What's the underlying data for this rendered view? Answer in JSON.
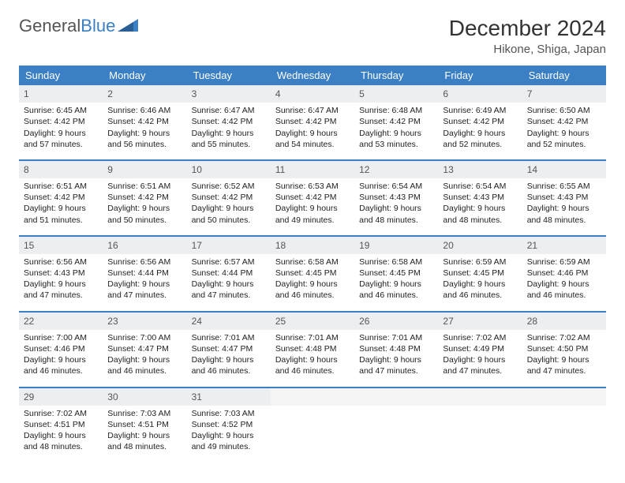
{
  "logo": {
    "text1": "General",
    "text2": "Blue"
  },
  "title": "December 2024",
  "location": "Hikone, Shiga, Japan",
  "colors": {
    "header_bg": "#3b7fc4",
    "header_text": "#ffffff",
    "daynum_bg": "#eceff2",
    "row_border": "#3b7fc4"
  },
  "weekdays": [
    "Sunday",
    "Monday",
    "Tuesday",
    "Wednesday",
    "Thursday",
    "Friday",
    "Saturday"
  ],
  "weeks": [
    [
      {
        "n": "1",
        "sr": "6:45 AM",
        "ss": "4:42 PM",
        "dl": "9 hours and 57 minutes."
      },
      {
        "n": "2",
        "sr": "6:46 AM",
        "ss": "4:42 PM",
        "dl": "9 hours and 56 minutes."
      },
      {
        "n": "3",
        "sr": "6:47 AM",
        "ss": "4:42 PM",
        "dl": "9 hours and 55 minutes."
      },
      {
        "n": "4",
        "sr": "6:47 AM",
        "ss": "4:42 PM",
        "dl": "9 hours and 54 minutes."
      },
      {
        "n": "5",
        "sr": "6:48 AM",
        "ss": "4:42 PM",
        "dl": "9 hours and 53 minutes."
      },
      {
        "n": "6",
        "sr": "6:49 AM",
        "ss": "4:42 PM",
        "dl": "9 hours and 52 minutes."
      },
      {
        "n": "7",
        "sr": "6:50 AM",
        "ss": "4:42 PM",
        "dl": "9 hours and 52 minutes."
      }
    ],
    [
      {
        "n": "8",
        "sr": "6:51 AM",
        "ss": "4:42 PM",
        "dl": "9 hours and 51 minutes."
      },
      {
        "n": "9",
        "sr": "6:51 AM",
        "ss": "4:42 PM",
        "dl": "9 hours and 50 minutes."
      },
      {
        "n": "10",
        "sr": "6:52 AM",
        "ss": "4:42 PM",
        "dl": "9 hours and 50 minutes."
      },
      {
        "n": "11",
        "sr": "6:53 AM",
        "ss": "4:42 PM",
        "dl": "9 hours and 49 minutes."
      },
      {
        "n": "12",
        "sr": "6:54 AM",
        "ss": "4:43 PM",
        "dl": "9 hours and 48 minutes."
      },
      {
        "n": "13",
        "sr": "6:54 AM",
        "ss": "4:43 PM",
        "dl": "9 hours and 48 minutes."
      },
      {
        "n": "14",
        "sr": "6:55 AM",
        "ss": "4:43 PM",
        "dl": "9 hours and 48 minutes."
      }
    ],
    [
      {
        "n": "15",
        "sr": "6:56 AM",
        "ss": "4:43 PM",
        "dl": "9 hours and 47 minutes."
      },
      {
        "n": "16",
        "sr": "6:56 AM",
        "ss": "4:44 PM",
        "dl": "9 hours and 47 minutes."
      },
      {
        "n": "17",
        "sr": "6:57 AM",
        "ss": "4:44 PM",
        "dl": "9 hours and 47 minutes."
      },
      {
        "n": "18",
        "sr": "6:58 AM",
        "ss": "4:45 PM",
        "dl": "9 hours and 46 minutes."
      },
      {
        "n": "19",
        "sr": "6:58 AM",
        "ss": "4:45 PM",
        "dl": "9 hours and 46 minutes."
      },
      {
        "n": "20",
        "sr": "6:59 AM",
        "ss": "4:45 PM",
        "dl": "9 hours and 46 minutes."
      },
      {
        "n": "21",
        "sr": "6:59 AM",
        "ss": "4:46 PM",
        "dl": "9 hours and 46 minutes."
      }
    ],
    [
      {
        "n": "22",
        "sr": "7:00 AM",
        "ss": "4:46 PM",
        "dl": "9 hours and 46 minutes."
      },
      {
        "n": "23",
        "sr": "7:00 AM",
        "ss": "4:47 PM",
        "dl": "9 hours and 46 minutes."
      },
      {
        "n": "24",
        "sr": "7:01 AM",
        "ss": "4:47 PM",
        "dl": "9 hours and 46 minutes."
      },
      {
        "n": "25",
        "sr": "7:01 AM",
        "ss": "4:48 PM",
        "dl": "9 hours and 46 minutes."
      },
      {
        "n": "26",
        "sr": "7:01 AM",
        "ss": "4:48 PM",
        "dl": "9 hours and 47 minutes."
      },
      {
        "n": "27",
        "sr": "7:02 AM",
        "ss": "4:49 PM",
        "dl": "9 hours and 47 minutes."
      },
      {
        "n": "28",
        "sr": "7:02 AM",
        "ss": "4:50 PM",
        "dl": "9 hours and 47 minutes."
      }
    ],
    [
      {
        "n": "29",
        "sr": "7:02 AM",
        "ss": "4:51 PM",
        "dl": "9 hours and 48 minutes."
      },
      {
        "n": "30",
        "sr": "7:03 AM",
        "ss": "4:51 PM",
        "dl": "9 hours and 48 minutes."
      },
      {
        "n": "31",
        "sr": "7:03 AM",
        "ss": "4:52 PM",
        "dl": "9 hours and 49 minutes."
      },
      {
        "empty": true
      },
      {
        "empty": true
      },
      {
        "empty": true
      },
      {
        "empty": true
      }
    ]
  ],
  "labels": {
    "sunrise": "Sunrise: ",
    "sunset": "Sunset: ",
    "daylight": "Daylight: "
  }
}
